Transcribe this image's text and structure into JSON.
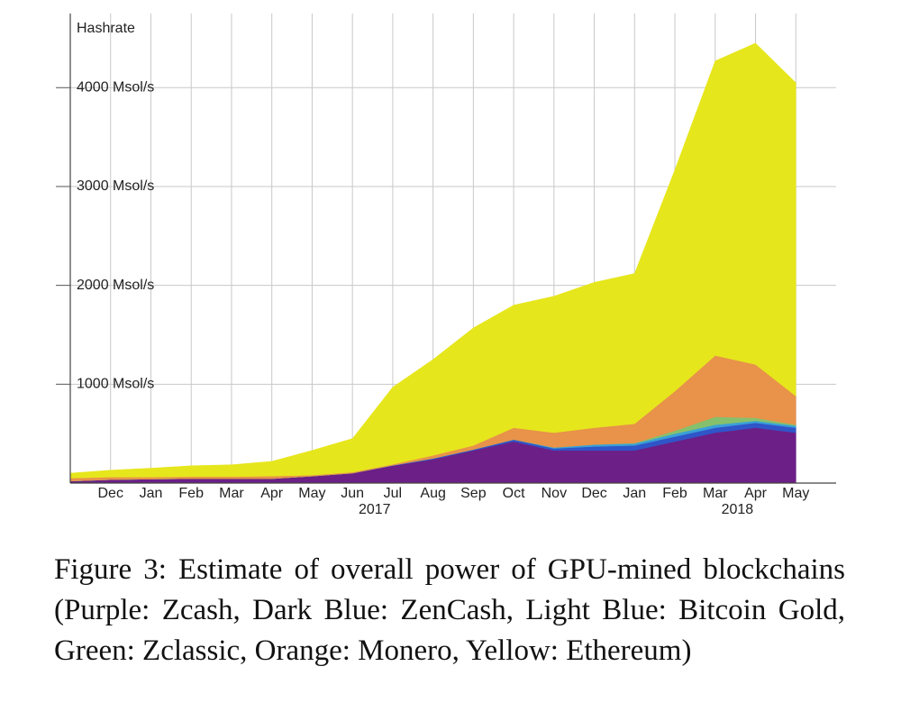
{
  "chart_data": {
    "type": "stacked-area",
    "y_label": "Hashrate",
    "caption": "Figure 3:  Estimate of overall power of GPU-mined blockchains (Purple: Zcash, Dark Blue: ZenCash, Light Blue: Bitcoin Gold, Green: Zclassic, Orange: Monero, Yellow: Ethereum)",
    "x": [
      "2016-11",
      "2016-12",
      "2017-01",
      "2017-02",
      "2017-03",
      "2017-04",
      "2017-05",
      "2017-06",
      "2017-07",
      "2017-08",
      "2017-09",
      "2017-10",
      "2017-11",
      "2017-12",
      "2018-01",
      "2018-02",
      "2018-03",
      "2018-04",
      "2018-05"
    ],
    "xlim": [
      "2016-11",
      "2018-06"
    ],
    "xticks": [
      {
        "value": "2016-12",
        "label": "Dec"
      },
      {
        "value": "2017-01",
        "label": "Jan"
      },
      {
        "value": "2017-02",
        "label": "Feb"
      },
      {
        "value": "2017-03",
        "label": "Mar"
      },
      {
        "value": "2017-04",
        "label": "Apr"
      },
      {
        "value": "2017-05",
        "label": "May"
      },
      {
        "value": "2017-06",
        "label": "Jun"
      },
      {
        "value": "2017-07",
        "label": "Jul"
      },
      {
        "value": "2017-08",
        "label": "Aug"
      },
      {
        "value": "2017-09",
        "label": "Sep"
      },
      {
        "value": "2017-10",
        "label": "Oct"
      },
      {
        "value": "2017-11",
        "label": "Nov"
      },
      {
        "value": "2017-12",
        "label": "Dec"
      },
      {
        "value": "2018-01",
        "label": "Jan"
      },
      {
        "value": "2018-02",
        "label": "Feb"
      },
      {
        "value": "2018-03",
        "label": "Mar"
      },
      {
        "value": "2018-04",
        "label": "Apr"
      },
      {
        "value": "2018-05",
        "label": "May"
      }
    ],
    "x_year_labels": [
      {
        "value": "2017-06",
        "label": "2017"
      },
      {
        "value": "2018-03",
        "label": "2018"
      }
    ],
    "ylim": [
      0,
      4750
    ],
    "yticks": [
      {
        "value": 1000,
        "label": "1000 Msol/s"
      },
      {
        "value": 2000,
        "label": "2000 Msol/s"
      },
      {
        "value": 3000,
        "label": "3000 Msol/s"
      },
      {
        "value": 4000,
        "label": "4000 Msol/s"
      }
    ],
    "grid": true,
    "series": [
      {
        "color": "#6c1f86",
        "values": [
          20,
          35,
          40,
          45,
          45,
          45,
          70,
          100,
          175,
          240,
          330,
          420,
          330,
          330,
          330,
          420,
          510,
          560,
          510
        ]
      },
      {
        "color": "#2f55c8",
        "values": [
          0,
          0,
          0,
          0,
          0,
          0,
          0,
          0,
          5,
          10,
          10,
          20,
          20,
          40,
          50,
          50,
          50,
          50,
          50
        ]
      },
      {
        "color": "#3aa0d8",
        "values": [
          0,
          0,
          0,
          0,
          0,
          0,
          0,
          0,
          0,
          0,
          0,
          0,
          10,
          20,
          20,
          30,
          30,
          20,
          20
        ]
      },
      {
        "color": "#86c06c",
        "values": [
          0,
          0,
          0,
          0,
          0,
          0,
          0,
          0,
          0,
          0,
          0,
          0,
          0,
          0,
          5,
          30,
          80,
          30,
          10
        ]
      },
      {
        "color": "#e8924a",
        "values": [
          30,
          25,
          20,
          20,
          20,
          25,
          10,
          10,
          10,
          30,
          40,
          120,
          150,
          170,
          195,
          400,
          620,
          540,
          290
        ]
      },
      {
        "color": "#e6e61c",
        "values": [
          50,
          70,
          90,
          110,
          120,
          150,
          250,
          340,
          780,
          970,
          1190,
          1240,
          1380,
          1470,
          1520,
          2240,
          2980,
          3250,
          3170
        ]
      }
    ]
  }
}
